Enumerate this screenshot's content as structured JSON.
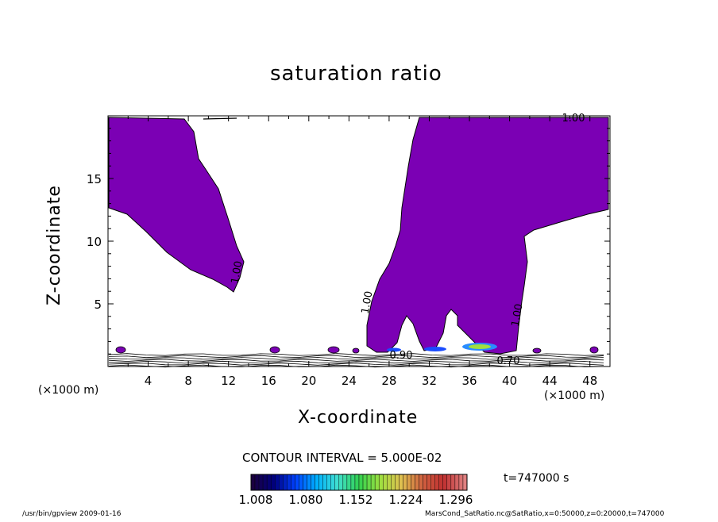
{
  "chart_data": {
    "type": "contour",
    "title": "saturation ratio",
    "xlabel": "X-coordinate",
    "ylabel": "Z-coordinate",
    "x_unit": "(×1000 m)",
    "xlim": [
      0,
      50
    ],
    "ylim": [
      0,
      20
    ],
    "x_ticks": [
      4,
      8,
      12,
      16,
      20,
      24,
      28,
      32,
      36,
      40,
      44,
      48
    ],
    "y_ticks": [
      5,
      10,
      15
    ],
    "contour_labels": [
      "1.00",
      "1.00",
      "1.00",
      "1.00",
      "0.70",
      "0.90"
    ],
    "contour_interval_text": "CONTOUR INTERVAL = 5.000E-02",
    "time_text": "t=747000 s",
    "colorbar": {
      "ticks": [
        "1.008",
        "1.080",
        "1.152",
        "1.224",
        "1.296"
      ],
      "colors": [
        "#1a0040",
        "#000080",
        "#0040ff",
        "#00b0ff",
        "#40e0d0",
        "#30d050",
        "#a0e040",
        "#e0c050",
        "#d06040",
        "#c03030",
        "#e08080"
      ]
    },
    "fill_color": "#7b00b4",
    "footer_left": "/usr/bin/gpview   2009-01-16",
    "footer_right": "MarsCond_SatRatio.nc@SatRatio,x=0:50000,z=0:20000,t=747000",
    "grid": false,
    "legend": "none"
  }
}
